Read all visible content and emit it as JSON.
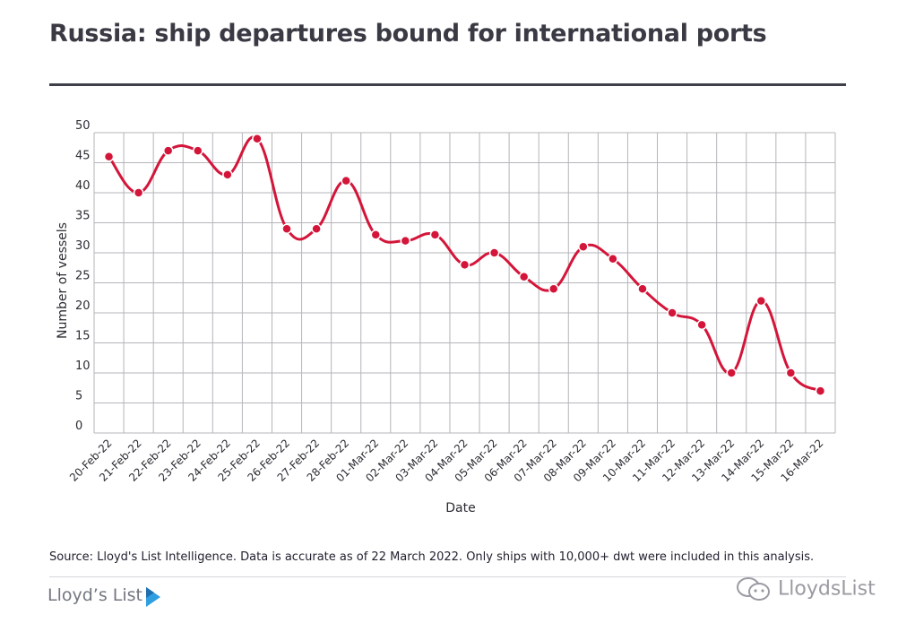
{
  "page": {
    "title": "Russia: ship departures bound for international ports",
    "source_note": "Source: Lloyd's List Intelligence. Data is accurate as of 22 March 2022. Only ships with 10,000+ dwt were included in this analysis.",
    "logo_text": "Lloyd’s List",
    "watermark_text": "LloydsList"
  },
  "colors": {
    "line": "#d4153a",
    "grid": "#b5b5bb",
    "text": "#2b2b33",
    "logo_accent": "#2f9fe0"
  },
  "chart_data": {
    "type": "line",
    "xlabel": "Date",
    "ylabel": "Number of vessels",
    "ylim": [
      0,
      50
    ],
    "yticks": [
      0,
      5,
      10,
      15,
      20,
      25,
      30,
      35,
      40,
      45,
      50
    ],
    "grid": true,
    "categories": [
      "20-Feb-22",
      "21-Feb-22",
      "22-Feb-22",
      "23-Feb-22",
      "24-Feb-22",
      "25-Feb-22",
      "26-Feb-22",
      "27-Feb-22",
      "28-Feb-22",
      "01-Mar-22",
      "02-Mar-22",
      "03-Mar-22",
      "04-Mar-22",
      "05-Mar-22",
      "06-Mar-22",
      "07-Mar-22",
      "08-Mar-22",
      "09-Mar-22",
      "10-Mar-22",
      "11-Mar-22",
      "12-Mar-22",
      "13-Mar-22",
      "14-Mar-22",
      "15-Mar-22",
      "16-Mar-22"
    ],
    "series": [
      {
        "values": [
          46,
          40,
          47,
          47,
          43,
          49,
          34,
          34,
          42,
          33,
          32,
          33,
          28,
          30,
          26,
          24,
          31,
          29,
          24,
          20,
          18,
          10,
          22,
          10,
          7
        ]
      }
    ]
  }
}
